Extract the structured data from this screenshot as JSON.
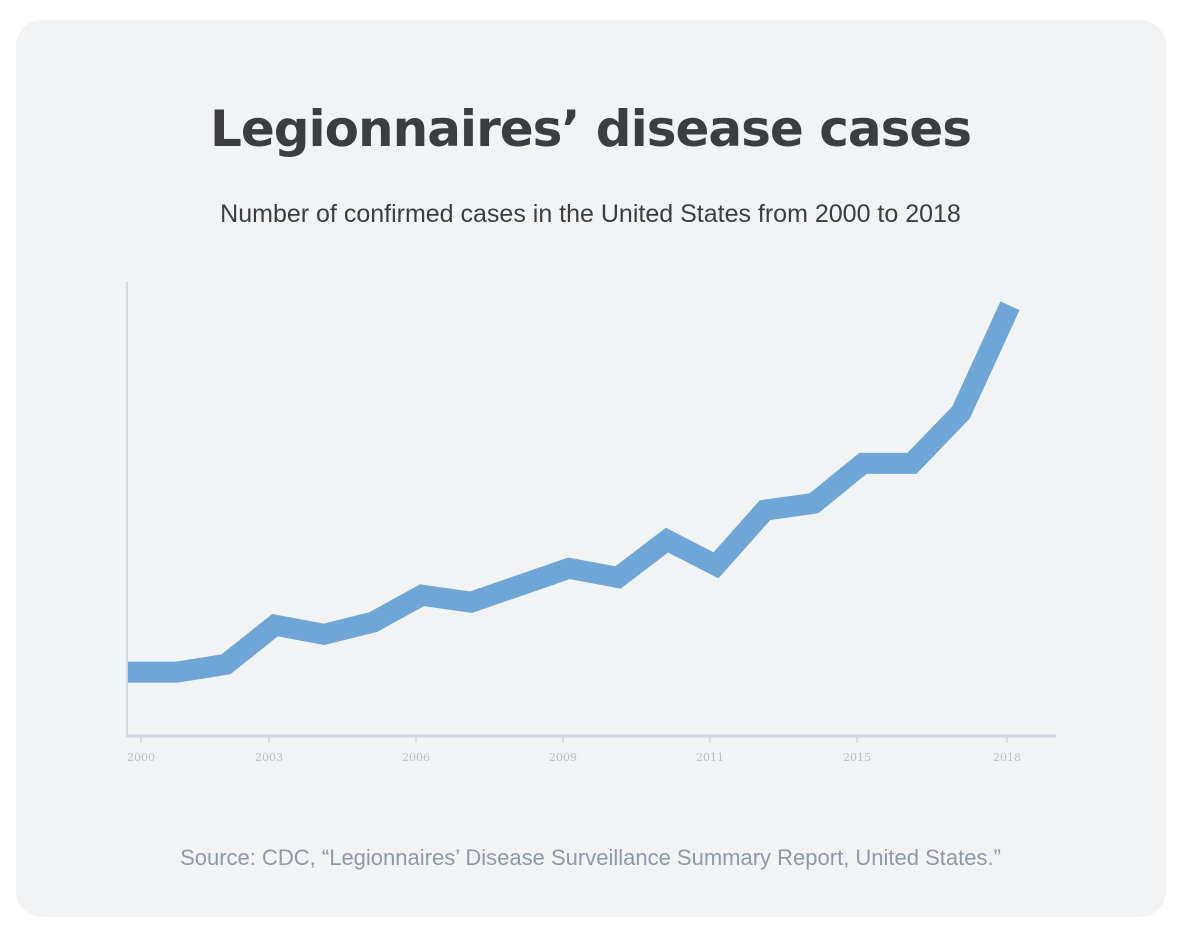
{
  "title": "Legionnaires’ disease cases",
  "subtitle": "Number of confirmed cases in the United States from 2000 to 2018",
  "source": "Source: CDC, “Legionnaires’ Disease Surveillance Summary Report, United States.”",
  "chart_data": {
    "type": "line",
    "title": "Legionnaires’ disease cases",
    "subtitle": "Number of confirmed cases in the United States from 2000 to 2018",
    "xlabel": "",
    "ylabel": "",
    "x": [
      2000,
      2001,
      2002,
      2003,
      2004,
      2005,
      2006,
      2007,
      2008,
      2009,
      2010,
      2011,
      2012,
      2013,
      2014,
      2015,
      2016,
      2017,
      2018
    ],
    "values": [
      1450,
      1450,
      1630,
      2530,
      2320,
      2600,
      3220,
      3060,
      3450,
      3840,
      3630,
      4490,
      3910,
      5180,
      5340,
      6260,
      6260,
      7430,
      9890
    ],
    "ylim": [
      0,
      10000
    ],
    "x_tick_labels": [
      "2000",
      "2003",
      "2006",
      "2009",
      "2011",
      "2015",
      "2018"
    ],
    "y_axis_labels_shown": false,
    "grid": false,
    "line_color": "#6ea7d7",
    "axis_color": "#d3d9e0"
  }
}
